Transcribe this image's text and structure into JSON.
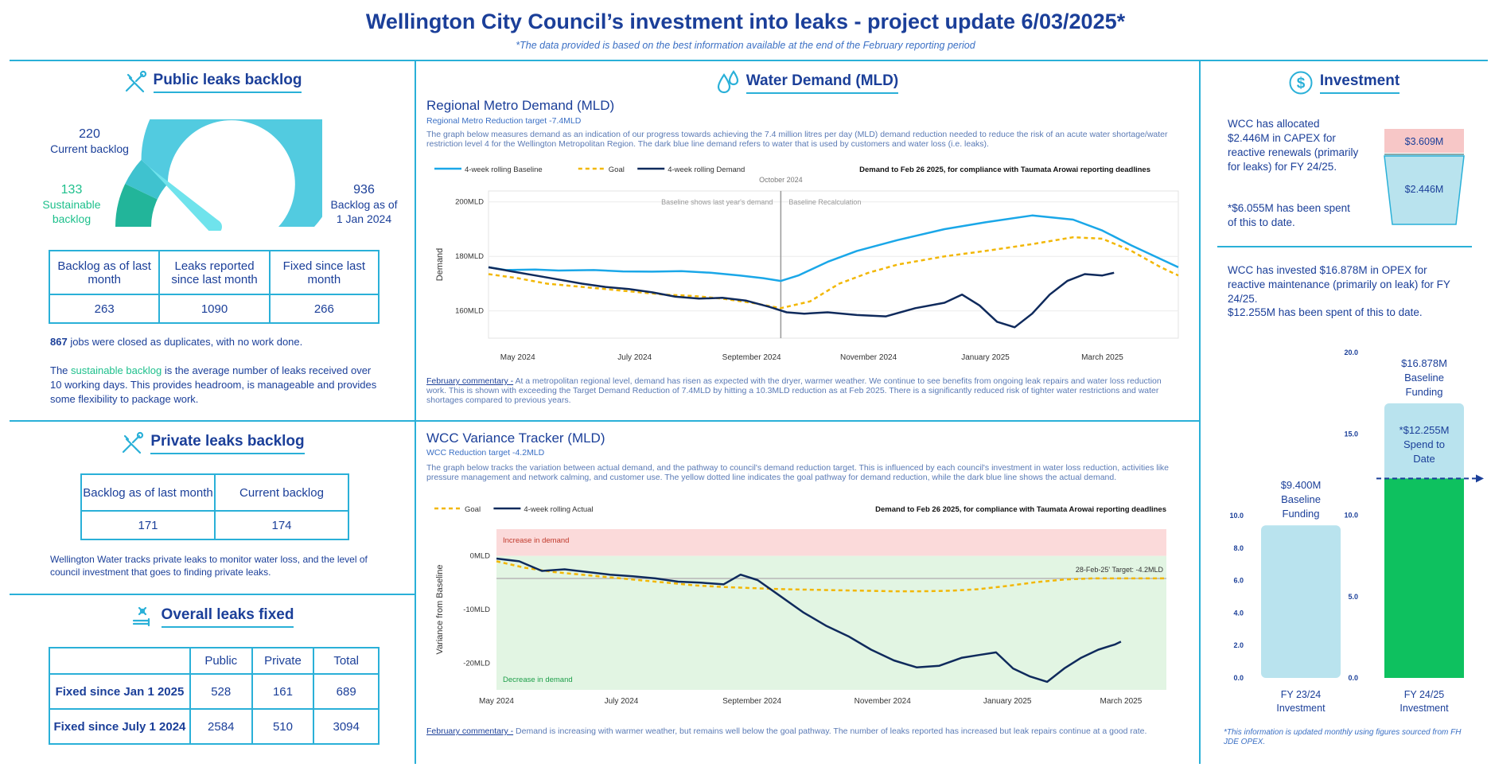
{
  "header": {
    "title": "Wellington City Council’s investment into leaks - project update 6/03/2025*",
    "subtitle": "*The data provided is based on the best information available at the end of the February reporting period"
  },
  "public_backlog": {
    "heading": "Public leaks backlog",
    "current_value": "220",
    "current_label": "Current backlog",
    "sustainable_value": "133",
    "sustainable_label_1": "Sustainable",
    "sustainable_label_2": "backlog",
    "jan_value": "936",
    "jan_label_1": "Backlog as of",
    "jan_label_2": "1 Jan 2024",
    "gauge": {
      "min": 0,
      "sustainable": 133,
      "current": 220,
      "max": 936
    },
    "table_headers": [
      "Backlog as of last month",
      "Leaks reported since last month",
      "Fixed since last month"
    ],
    "table_values": [
      "263",
      "1090",
      "266"
    ],
    "duplicates_num": "867",
    "duplicates_text": " jobs were closed as duplicates, with no work done.",
    "sustainable_note_pre": "The ",
    "sustainable_note_link": "sustainable backlog",
    "sustainable_note_post": " is the average number of leaks received over 10 working days. This provides headroom, is manageable and provides some flexibility to package work."
  },
  "private_backlog": {
    "heading": "Private leaks backlog",
    "table_headers": [
      "Backlog as of last month",
      "Current backlog"
    ],
    "table_values": [
      "171",
      "174"
    ],
    "note": "Wellington Water tracks private leaks to monitor water loss, and the level of council investment that goes to finding private leaks."
  },
  "overall_fixed": {
    "heading": "Overall leaks fixed",
    "columns": [
      "Public",
      "Private",
      "Total"
    ],
    "rows": [
      {
        "label": "Fixed since Jan 1 2025",
        "public": "528",
        "private": "161",
        "total": "689"
      },
      {
        "label": "Fixed since July 1 2024",
        "public": "2584",
        "private": "510",
        "total": "3094"
      }
    ]
  },
  "water_demand": {
    "heading": "Water Demand (MLD)"
  },
  "regional": {
    "title": "Regional Metro Demand (MLD)",
    "subtitle": "Regional Metro Reduction target -7.4MLD",
    "description": "The graph below measures demand as an indication of our progress towards achieving the 7.4 million litres per day (MLD) demand reduction needed to reduce the risk of an acute water shortage/water restriction level 4 for the Wellington Metropolitan Region. The dark blue line demand refers to water that is used by customers and water loss (i.e. leaks).",
    "commentary_label": "February commentary -",
    "commentary": " At a metropolitan regional level, demand has risen as expected with the dryer, warmer weather. We continue to see benefits from ongoing leak repairs and water loss reduction work. This is shown with exceeding the Target Demand Reduction of 7.4MLD by hitting a 10.3MLD reduction as at Feb 2025. There is a significantly reduced risk of tighter water restrictions and water shortages compared to previous years."
  },
  "variance": {
    "title": "WCC Variance Tracker (MLD)",
    "subtitle": "WCC Reduction target -4.2MLD",
    "description": "The graph below tracks the variation between actual demand, and the pathway to council's demand reduction target. This is influenced by each council's investment in water loss reduction, activities like pressure management and network calming, and customer use. The yellow dotted line indicates the goal pathway for demand reduction, while the dark blue line shows the actual demand.",
    "commentary_label": "February commentary -",
    "commentary": " Demand is increasing with warmer weather, but remains well below the goal pathway. The number of leaks reported has increased but leak repairs continue at a good rate."
  },
  "investment": {
    "heading": "Investment",
    "capex_text": "WCC has allocated $2.446M in CAPEX for reactive renewals (primarily for leaks) for FY 24/25.",
    "capex_spent": "*$6.055M has been spent of this to date.",
    "bucket_top": "$3.609M",
    "bucket_bottom": "$2.446M",
    "opex_text": "WCC has invested $16.878M in OPEX for reactive maintenance (primarily on leak) for FY 24/25.",
    "opex_spent": "$12.255M has been spent of this to date.",
    "footnote": "*This information is updated monthly using figures sourced from FH JDE OPEX."
  },
  "chart_data": [
    {
      "type": "line",
      "title": "Regional Metro Demand (MLD)",
      "subtitle": "Regional Metro Reduction target -7.4MLD",
      "note": "Demand to Feb 26 2025, for compliance with Taumata Arowai reporting deadlines",
      "ylabel": "Demand",
      "ylim": [
        150,
        204
      ],
      "y_ticks": [
        "160MLD",
        "180MLD",
        "200MLD"
      ],
      "x_ticks": [
        "May 2024",
        "July 2024",
        "September 2024",
        "November 2024",
        "January 2025",
        "March 2025"
      ],
      "xlim_months": [
        0,
        11.8
      ],
      "vline": {
        "x": 5.0,
        "label": "October 2024",
        "left_note": "Baseline shows last year's demand",
        "right_note": "Baseline Recalculation"
      },
      "series": [
        {
          "name": "4-week rolling Baseline",
          "color": "#1aa7e8",
          "dash": "",
          "x": [
            0,
            0.3,
            0.8,
            1.2,
            1.8,
            2.3,
            2.8,
            3.3,
            3.8,
            4.3,
            4.7,
            5.0,
            5.3,
            5.8,
            6.3,
            7.0,
            7.8,
            8.5,
            9.3,
            10.0,
            10.5,
            11.0,
            11.5,
            11.8
          ],
          "y": [
            176,
            175,
            175.2,
            174.8,
            175,
            174.5,
            174.4,
            174.6,
            174,
            173,
            172,
            171,
            173,
            178,
            182,
            186,
            190,
            192.5,
            195,
            193.5,
            189.5,
            184,
            179,
            176
          ]
        },
        {
          "name": "Goal",
          "color": "#f2b705",
          "dash": "5,4",
          "x": [
            0,
            0.5,
            1.0,
            1.5,
            2.0,
            2.5,
            3.0,
            3.5,
            4.0,
            4.5,
            5.0,
            5.5,
            6.0,
            6.5,
            7.0,
            7.8,
            8.5,
            9.3,
            10.0,
            10.5,
            11.0,
            11.5,
            11.8
          ],
          "y": [
            173.5,
            172,
            170,
            169,
            168,
            167,
            166,
            165.5,
            164.5,
            163,
            161,
            163.5,
            170,
            174,
            177,
            180,
            182,
            184.5,
            187,
            186.5,
            182,
            176,
            173
          ]
        },
        {
          "name": "4-week rolling Demand",
          "color": "#0f2a5c",
          "dash": "",
          "x": [
            0,
            0.4,
            0.8,
            1.2,
            1.6,
            2.0,
            2.4,
            2.8,
            3.2,
            3.6,
            4.0,
            4.4,
            4.8,
            5.1,
            5.4,
            5.8,
            6.3,
            6.8,
            7.3,
            7.8,
            8.1,
            8.4,
            8.7,
            9.0,
            9.3,
            9.6,
            9.9,
            10.2,
            10.5,
            10.7
          ],
          "y": [
            176,
            174.5,
            173,
            171.5,
            170,
            168.8,
            168,
            166.8,
            165.2,
            164.5,
            164.8,
            163.8,
            161.5,
            159.5,
            159,
            159.5,
            158.5,
            158,
            161,
            163,
            166,
            162,
            156,
            154,
            159,
            166,
            171,
            173.5,
            173,
            174
          ]
        }
      ]
    },
    {
      "type": "line",
      "title": "WCC Variance Tracker (MLD)",
      "subtitle": "WCC Reduction target -4.2MLD",
      "note": "Demand to Feb 26 2025, for compliance with Taumata Arowai reporting deadlines",
      "ylabel": "Variance from Baseline",
      "ylim": [
        -25,
        5
      ],
      "y_ticks": [
        "0MLD",
        "-10MLD",
        "-20MLD"
      ],
      "x_ticks": [
        "May 2024",
        "July 2024",
        "September 2024",
        "November 2024",
        "January 2025",
        "March 2025"
      ],
      "xlim_months": [
        0,
        11.8
      ],
      "bands": {
        "increase_label": "Increase in demand",
        "decrease_label": "Decrease in demand"
      },
      "target": {
        "value": -4.2,
        "label": "28-Feb-25' Target: -4.2MLD"
      },
      "series": [
        {
          "name": "Goal",
          "color": "#f2b705",
          "dash": "5,4",
          "x": [
            0,
            0.5,
            1.0,
            1.5,
            2.0,
            2.5,
            3.0,
            3.5,
            4.0,
            4.5,
            5.0,
            5.5,
            6.0,
            6.5,
            7.0,
            7.5,
            8.0,
            8.5,
            9.0,
            9.5,
            10.0,
            10.5,
            11.0,
            11.8
          ],
          "y": [
            -1,
            -2.2,
            -3,
            -3.5,
            -4,
            -4.5,
            -5,
            -5.5,
            -5.8,
            -6,
            -6.2,
            -6.3,
            -6.4,
            -6.5,
            -6.6,
            -6.6,
            -6.5,
            -6.2,
            -5.6,
            -4.9,
            -4.4,
            -4.2,
            -4.2,
            -4.2
          ]
        },
        {
          "name": "4-week rolling Actual",
          "color": "#0f2a5c",
          "dash": "",
          "x": [
            0,
            0.4,
            0.8,
            1.2,
            1.6,
            2.0,
            2.4,
            2.8,
            3.2,
            3.6,
            4.0,
            4.3,
            4.6,
            5.0,
            5.4,
            5.8,
            6.2,
            6.6,
            7.0,
            7.4,
            7.8,
            8.2,
            8.5,
            8.8,
            9.1,
            9.4,
            9.7,
            10.0,
            10.3,
            10.6,
            10.9,
            11.0
          ],
          "y": [
            -0.5,
            -1,
            -2.8,
            -2.5,
            -3,
            -3.5,
            -3.8,
            -4.2,
            -4.8,
            -5,
            -5.3,
            -3.5,
            -4.5,
            -7.5,
            -10.5,
            -13,
            -15,
            -17.5,
            -19.5,
            -20.8,
            -20.5,
            -19,
            -18.5,
            -18,
            -21,
            -22.5,
            -23.5,
            -21,
            -19,
            -17.5,
            -16.5,
            -16
          ]
        }
      ]
    },
    {
      "type": "bar",
      "title": "Investment",
      "categories": [
        "FY 23/24 Investment",
        "FY 24/25 Investment"
      ],
      "series": [
        {
          "name": "Baseline Funding",
          "values": [
            9.4,
            16.878
          ],
          "labels": [
            "$9.400M Baseline Funding",
            "$16.878M Baseline Funding"
          ],
          "color": "#b9e3ee"
        },
        {
          "name": "Spend to Date",
          "values": [
            null,
            12.255
          ],
          "labels": [
            "",
            "*$12.255M Spend to Date"
          ],
          "color": "#0ec15f"
        }
      ],
      "y_ticks_left": [
        "0.0",
        "2.0",
        "4.0",
        "6.0",
        "8.0",
        "10.0"
      ],
      "y_ticks_right": [
        "0.0",
        "5.0",
        "10.0",
        "15.0",
        "20.0"
      ],
      "ylim_left": [
        0,
        10
      ],
      "ylim_right": [
        0,
        20
      ]
    }
  ]
}
